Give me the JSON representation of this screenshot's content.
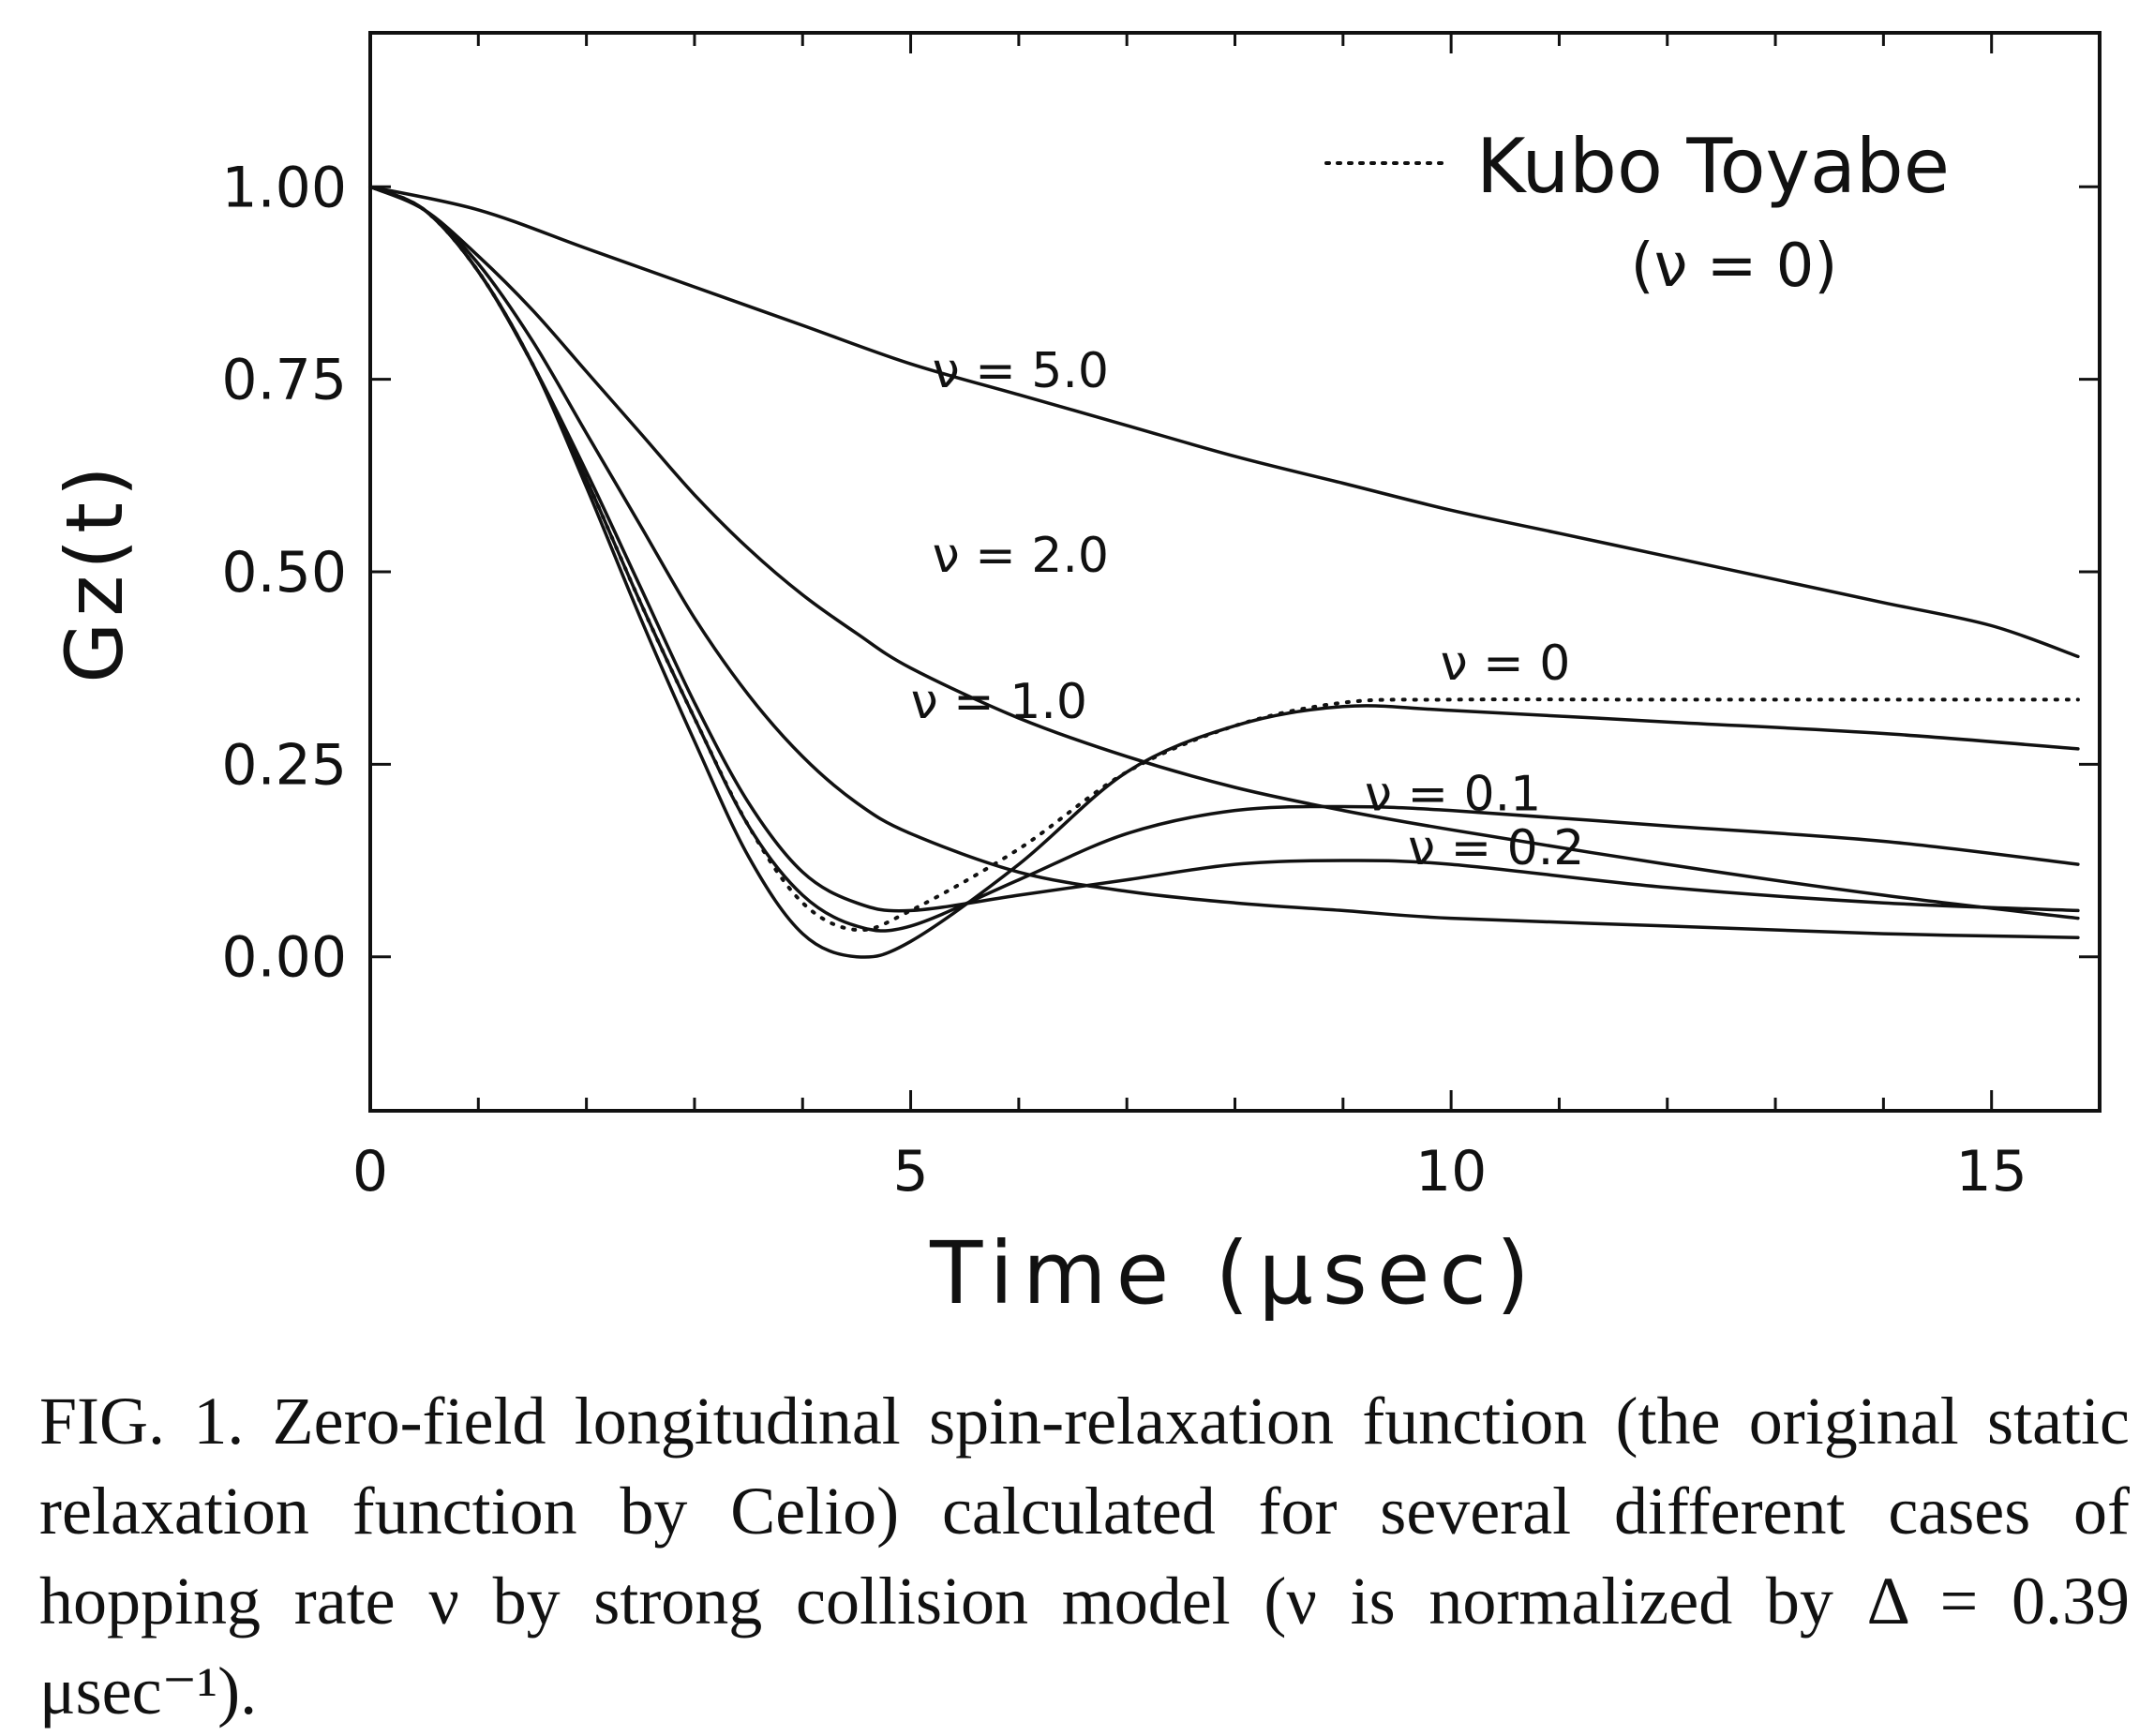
{
  "chart_data": {
    "type": "line",
    "xlabel": "Time (μsec)",
    "ylabel": "Gz(t)",
    "xlim": [
      0,
      16
    ],
    "ylim": [
      -0.2,
      1.2
    ],
    "x_ticks": [
      0,
      5,
      10,
      15
    ],
    "x_tick_labels": [
      "0",
      "5",
      "10",
      "15"
    ],
    "y_ticks": [
      0,
      0.25,
      0.5,
      0.75,
      1.0
    ],
    "y_tick_labels": [
      "0.00",
      "0.25",
      "0.50",
      "0.75",
      "1.00"
    ],
    "legend": {
      "position": "top-right",
      "entries": [
        {
          "line_style": "dotted",
          "label": "Kubo Toyabe",
          "sublabel": "(ν = 0)"
        }
      ]
    },
    "series": [
      {
        "name": "ν = 0",
        "style": "dotted",
        "x": [
          0,
          0.5,
          1,
          1.5,
          2,
          2.5,
          3,
          3.5,
          4,
          4.5,
          5,
          6,
          7,
          8,
          9,
          10,
          12,
          14,
          15.8
        ],
        "y": [
          1.0,
          0.97,
          0.89,
          0.77,
          0.62,
          0.46,
          0.31,
          0.17,
          0.07,
          0.035,
          0.06,
          0.14,
          0.24,
          0.3,
          0.33,
          0.334,
          0.334,
          0.334,
          0.334
        ]
      },
      {
        "name": "ν = 0",
        "style": "solid",
        "x": [
          0,
          0.5,
          1,
          1.5,
          2,
          2.5,
          3,
          3.5,
          4,
          4.5,
          5,
          6,
          7,
          8,
          9,
          10,
          12,
          14,
          15.8
        ],
        "y": [
          1.0,
          0.97,
          0.89,
          0.77,
          0.61,
          0.44,
          0.28,
          0.13,
          0.03,
          0.0,
          0.02,
          0.12,
          0.24,
          0.3,
          0.325,
          0.32,
          0.305,
          0.29,
          0.27
        ]
      },
      {
        "name": "ν = 0.1",
        "style": "solid",
        "x": [
          0,
          0.5,
          1,
          1.5,
          2,
          2.5,
          3,
          3.5,
          4,
          4.5,
          5,
          6,
          7,
          8,
          9,
          10,
          12,
          14,
          15.8
        ],
        "y": [
          1.0,
          0.97,
          0.89,
          0.77,
          0.62,
          0.46,
          0.31,
          0.17,
          0.08,
          0.04,
          0.04,
          0.1,
          0.16,
          0.19,
          0.195,
          0.19,
          0.17,
          0.15,
          0.12
        ]
      },
      {
        "name": "ν = 0.2",
        "style": "solid",
        "x": [
          0,
          0.5,
          1,
          1.5,
          2,
          2.5,
          3,
          3.5,
          4,
          4.5,
          5,
          6,
          7,
          8,
          9,
          10,
          12,
          14,
          15.8
        ],
        "y": [
          1.0,
          0.97,
          0.89,
          0.77,
          0.63,
          0.48,
          0.33,
          0.2,
          0.11,
          0.07,
          0.06,
          0.08,
          0.1,
          0.12,
          0.125,
          0.12,
          0.09,
          0.07,
          0.06
        ]
      },
      {
        "name": "ν = 1.0",
        "style": "solid",
        "x": [
          0,
          0.5,
          1,
          1.5,
          2,
          2.5,
          3,
          3.5,
          4,
          4.5,
          5,
          6,
          7,
          8,
          9,
          10,
          12,
          14,
          15.8
        ],
        "y": [
          1.0,
          0.97,
          0.9,
          0.8,
          0.68,
          0.56,
          0.44,
          0.34,
          0.26,
          0.2,
          0.16,
          0.11,
          0.085,
          0.07,
          0.06,
          0.05,
          0.04,
          0.03,
          0.025
        ]
      },
      {
        "name": "ν = 2.0",
        "style": "solid",
        "x": [
          0,
          0.5,
          1,
          1.5,
          2,
          2.5,
          3,
          3.5,
          4,
          4.5,
          5,
          6,
          7,
          8,
          9,
          10,
          12,
          14,
          15.8
        ],
        "y": [
          1.0,
          0.97,
          0.91,
          0.84,
          0.76,
          0.68,
          0.6,
          0.53,
          0.47,
          0.42,
          0.375,
          0.31,
          0.26,
          0.22,
          0.19,
          0.165,
          0.12,
          0.08,
          0.05
        ]
      },
      {
        "name": "ν = 5.0",
        "style": "solid",
        "x": [
          0,
          1,
          2,
          3,
          4,
          5,
          6,
          7,
          8,
          9,
          10,
          11,
          12,
          13,
          14,
          15,
          15.8
        ],
        "y": [
          1.0,
          0.97,
          0.92,
          0.87,
          0.82,
          0.77,
          0.73,
          0.69,
          0.65,
          0.615,
          0.58,
          0.55,
          0.52,
          0.49,
          0.46,
          0.43,
          0.39
        ]
      }
    ],
    "annotations": [
      {
        "text": "ν = 5.0",
        "x": 5.2,
        "y": 0.74
      },
      {
        "text": "ν = 2.0",
        "x": 5.2,
        "y": 0.5
      },
      {
        "text": "ν = 1.0",
        "x": 5.0,
        "y": 0.31
      },
      {
        "text": "ν = 0",
        "x": 9.9,
        "y": 0.36
      },
      {
        "text": "ν = 0.1",
        "x": 9.2,
        "y": 0.19
      },
      {
        "text": "ν = 0.2",
        "x": 9.6,
        "y": 0.12
      }
    ]
  },
  "caption": "FIG. 1. Zero-field longitudinal spin-relaxation function (the original static relaxation function by Celio) calculated for several different cases of hopping rate ν by strong collision model (ν is normalized by Δ = 0.39 μsec⁻¹)."
}
